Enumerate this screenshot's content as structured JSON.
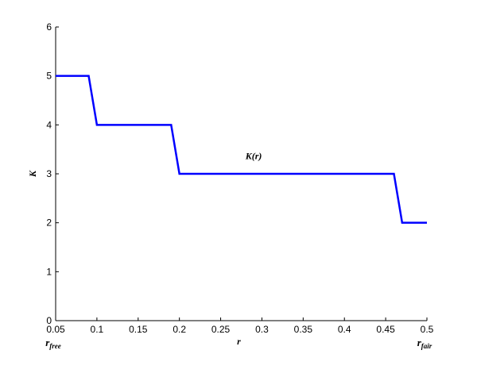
{
  "chart_data": {
    "type": "line",
    "x": [
      0.05,
      0.09,
      0.1,
      0.19,
      0.2,
      0.46,
      0.47,
      0.5
    ],
    "values": [
      5,
      5,
      4,
      4,
      3,
      3,
      2,
      2
    ],
    "color": "#0000ff",
    "xlim": [
      0.05,
      0.5
    ],
    "ylim": [
      0,
      6
    ],
    "xticks": [
      0.05,
      0.1,
      0.15,
      0.2,
      0.25,
      0.3,
      0.35,
      0.4,
      0.45,
      0.5
    ],
    "yticks": [
      0,
      1,
      2,
      3,
      4,
      5,
      6
    ],
    "x_label": "r",
    "y_label": "K",
    "annotations": [
      {
        "text": "K(r)",
        "x": 0.28,
        "y": 3.3
      },
      {
        "text": "r",
        "sub": "free",
        "x": 0.05
      },
      {
        "text": "r",
        "sub": "fair",
        "x": 0.5
      }
    ]
  }
}
